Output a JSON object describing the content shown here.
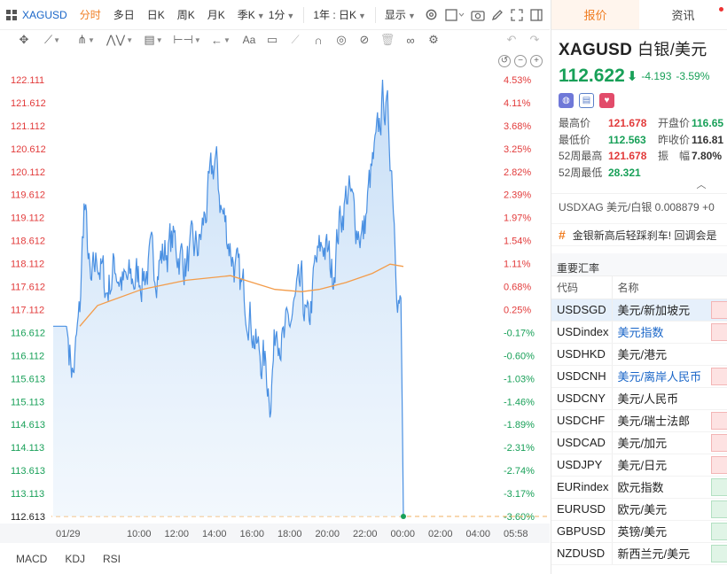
{
  "toolbar": {
    "symbol": "XAGUSD",
    "periods": [
      "分时",
      "多日",
      "日K",
      "周K",
      "月K",
      "季K",
      "1分"
    ],
    "active_period": "分时",
    "range": "1年 : 日K",
    "display": "显示"
  },
  "draw_tools": [
    "crosshair",
    "trend-line",
    "fork",
    "wave",
    "fib",
    "measure",
    "arrow",
    "text",
    "note",
    "ruler",
    "magnet",
    "eye",
    "hide",
    "trash",
    "link",
    "settings",
    "undo",
    "redo"
  ],
  "chart_data": {
    "type": "line",
    "title": "",
    "y_ticks": [
      "122.111",
      "121.612",
      "121.112",
      "120.612",
      "120.112",
      "119.612",
      "119.112",
      "118.612",
      "118.112",
      "117.612",
      "117.112",
      "116.612",
      "116.112",
      "115.613",
      "115.113",
      "114.613",
      "114.113",
      "113.613",
      "113.113",
      "112.613"
    ],
    "pct_ticks": [
      "4.53%",
      "4.11%",
      "3.68%",
      "3.25%",
      "2.82%",
      "2.39%",
      "1.97%",
      "1.54%",
      "1.11%",
      "0.68%",
      "0.25%",
      "-0.17%",
      "-0.60%",
      "-1.03%",
      "-1.46%",
      "-1.89%",
      "-2.31%",
      "-2.74%",
      "-3.17%",
      "-3.60%"
    ],
    "x_ticks": [
      "01/29",
      "10:00",
      "12:00",
      "14:00",
      "16:00",
      "18:00",
      "20:00",
      "22:00",
      "00:00",
      "02:00",
      "04:00",
      "05:58"
    ],
    "ylim": [
      112.613,
      122.111
    ],
    "reference_price": 116.815,
    "last_price": 112.613,
    "series": [
      {
        "name": "price",
        "color": "#4a90e2",
        "keyframes": [
          [
            0,
            116.75
          ],
          [
            0.03,
            116.75
          ],
          [
            0.045,
            115.7
          ],
          [
            0.06,
            117.0
          ],
          [
            0.07,
            119.5
          ],
          [
            0.085,
            117.4
          ],
          [
            0.1,
            118.3
          ],
          [
            0.12,
            117.5
          ],
          [
            0.14,
            118.1
          ],
          [
            0.16,
            117.6
          ],
          [
            0.2,
            117.9
          ],
          [
            0.24,
            118.2
          ],
          [
            0.27,
            118.6
          ],
          [
            0.3,
            118.1
          ],
          [
            0.33,
            118.5
          ],
          [
            0.355,
            119.8
          ],
          [
            0.365,
            120.4
          ],
          [
            0.38,
            119.3
          ],
          [
            0.4,
            118.5
          ],
          [
            0.42,
            117.6
          ],
          [
            0.44,
            117.3
          ],
          [
            0.46,
            116.2
          ],
          [
            0.475,
            116.0
          ],
          [
            0.49,
            115.3
          ],
          [
            0.505,
            117.0
          ],
          [
            0.52,
            116.3
          ],
          [
            0.54,
            117.0
          ],
          [
            0.56,
            117.5
          ],
          [
            0.575,
            116.6
          ],
          [
            0.59,
            117.9
          ],
          [
            0.61,
            118.6
          ],
          [
            0.63,
            117.9
          ],
          [
            0.645,
            119.0
          ],
          [
            0.665,
            119.7
          ],
          [
            0.68,
            119.1
          ],
          [
            0.7,
            118.7
          ],
          [
            0.715,
            119.9
          ],
          [
            0.73,
            120.6
          ],
          [
            0.745,
            121.8
          ],
          [
            0.755,
            121.2
          ],
          [
            0.765,
            120.1
          ],
          [
            0.775,
            118.0
          ],
          [
            0.785,
            117.0
          ],
          [
            0.79,
            112.62
          ]
        ]
      },
      {
        "name": "avg",
        "color": "#f39c4a",
        "keyframes": [
          [
            0.06,
            116.75
          ],
          [
            0.1,
            117.2
          ],
          [
            0.2,
            117.55
          ],
          [
            0.3,
            117.75
          ],
          [
            0.4,
            117.85
          ],
          [
            0.45,
            117.7
          ],
          [
            0.5,
            117.55
          ],
          [
            0.56,
            117.5
          ],
          [
            0.6,
            117.55
          ],
          [
            0.66,
            117.7
          ],
          [
            0.72,
            117.9
          ],
          [
            0.76,
            118.1
          ],
          [
            0.79,
            118.05
          ]
        ]
      }
    ]
  },
  "bottom_tabs": [
    "MACD",
    "KDJ",
    "RSI"
  ],
  "right": {
    "tabs": [
      "报价",
      "资讯"
    ],
    "symbol": "XAGUSD",
    "symbol_cn": "白银/美元",
    "price": "112.622",
    "change": "-4.193",
    "change_pct": "-3.59%",
    "stats": [
      {
        "k": "最高价",
        "v": "121.678",
        "c": "red",
        "k2": "开盘价",
        "v2": "116.65",
        "c2": "green"
      },
      {
        "k": "最低价",
        "v": "112.563",
        "c": "green",
        "k2": "昨收价",
        "v2": "116.81",
        "c2": "dark"
      },
      {
        "k": "52周最高",
        "v": "121.678",
        "c": "red",
        "k2": "振　幅",
        "v2": "7.80%",
        "c2": "dark"
      },
      {
        "k": "52周最低",
        "v": "28.321",
        "c": "green",
        "k2": "",
        "v2": "",
        "c2": "dark"
      }
    ],
    "usdxag": "USDXAG 美元/白银  0.008879  +0",
    "news": "金银新高后轻踩刹车! 回调会是",
    "section": "重要汇率",
    "table_headers": [
      "代码",
      "名称"
    ],
    "rates": [
      {
        "code": "USDSGD",
        "name": "美元/新加坡元",
        "link": false,
        "dir": "up",
        "sel": true
      },
      {
        "code": "USDindex",
        "name": "美元指数",
        "link": true,
        "dir": "up",
        "sel": false
      },
      {
        "code": "USDHKD",
        "name": "美元/港元",
        "link": false,
        "dir": "none",
        "sel": false
      },
      {
        "code": "USDCNH",
        "name": "美元/离岸人民币",
        "link": true,
        "dir": "up",
        "sel": false
      },
      {
        "code": "USDCNY",
        "name": "美元/人民币",
        "link": false,
        "dir": "none",
        "sel": false
      },
      {
        "code": "USDCHF",
        "name": "美元/瑞士法郎",
        "link": false,
        "dir": "up",
        "sel": false
      },
      {
        "code": "USDCAD",
        "name": "美元/加元",
        "link": false,
        "dir": "up",
        "sel": false
      },
      {
        "code": "USDJPY",
        "name": "美元/日元",
        "link": false,
        "dir": "up",
        "sel": false
      },
      {
        "code": "EURindex",
        "name": "欧元指数",
        "link": false,
        "dir": "down",
        "sel": false
      },
      {
        "code": "EURUSD",
        "name": "欧元/美元",
        "link": false,
        "dir": "down",
        "sel": false
      },
      {
        "code": "GBPUSD",
        "name": "英镑/美元",
        "link": false,
        "dir": "down",
        "sel": false
      },
      {
        "code": "NZDUSD",
        "name": "新西兰元/美元",
        "link": false,
        "dir": "down",
        "sel": false
      }
    ]
  }
}
